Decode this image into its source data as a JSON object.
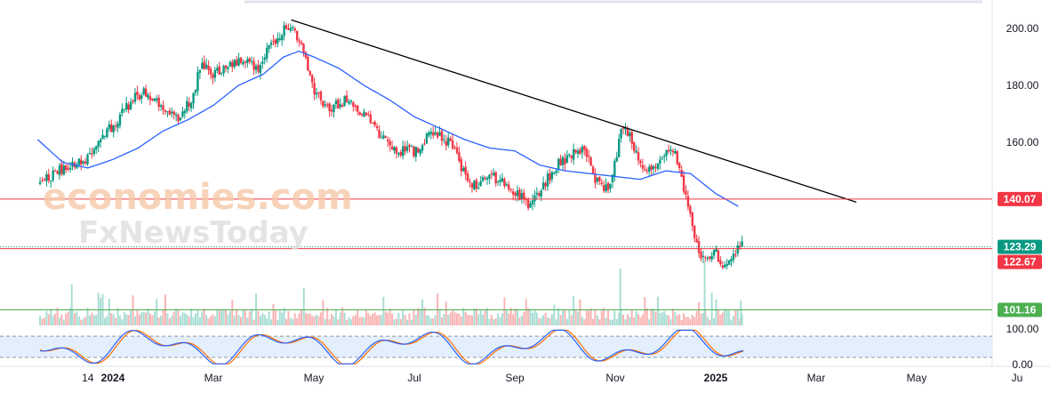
{
  "chart_data": {
    "type": "candlestick",
    "price_axis": {
      "range": [
        96,
        210
      ],
      "ticks": [
        "200.00",
        "180.00",
        "160.00"
      ]
    },
    "stoch_axis": {
      "range": [
        -5,
        108
      ],
      "ticks": [
        "100.00",
        "0.00"
      ],
      "upper_band": 80,
      "lower_band": 20
    },
    "date_labels": [
      {
        "label": "14",
        "month": -0.5,
        "bold": false
      },
      {
        "label": "2024",
        "month": 0,
        "bold": true
      },
      {
        "label": "Mar",
        "month": 2,
        "bold": false
      },
      {
        "label": "May",
        "month": 4,
        "bold": false
      },
      {
        "label": "Jul",
        "month": 6,
        "bold": false
      },
      {
        "label": "Sep",
        "month": 8,
        "bold": false
      },
      {
        "label": "Nov",
        "month": 10,
        "bold": false
      },
      {
        "label": "2025",
        "month": 12,
        "bold": true
      },
      {
        "label": "Mar",
        "month": 14,
        "bold": false
      },
      {
        "label": "May",
        "month": 16,
        "bold": false
      },
      {
        "label": "Ju",
        "month": 18,
        "bold": false
      }
    ],
    "levels": [
      {
        "value": 140.07,
        "label": "140.07",
        "color": "#f23645",
        "style": "solid"
      },
      {
        "value": 123.29,
        "label": "123.29",
        "color": "#089981",
        "style": "dotted"
      },
      {
        "value": 122.67,
        "label": "122.67",
        "color": "#f23645",
        "style": "solid"
      },
      {
        "value": 101.16,
        "label": "101.16",
        "color": "#4caf50",
        "style": "solid"
      }
    ],
    "trendline": {
      "start": {
        "month": 3.55,
        "price": 203
      },
      "end": {
        "month": 14.8,
        "price": 139
      }
    },
    "price_path": [
      [
        -1.45,
        146
      ],
      [
        -1.2,
        149
      ],
      [
        -0.9,
        151
      ],
      [
        -0.6,
        153
      ],
      [
        -0.3,
        160
      ],
      [
        0,
        166
      ],
      [
        0.3,
        173
      ],
      [
        0.6,
        178
      ],
      [
        1.0,
        172
      ],
      [
        1.3,
        168
      ],
      [
        1.6,
        176
      ],
      [
        1.75,
        188
      ],
      [
        2.0,
        184
      ],
      [
        2.3,
        186
      ],
      [
        2.6,
        190
      ],
      [
        2.9,
        185
      ],
      [
        3.1,
        193
      ],
      [
        3.35,
        199
      ],
      [
        3.55,
        202
      ],
      [
        3.75,
        193
      ],
      [
        3.85,
        190
      ],
      [
        4.0,
        177
      ],
      [
        4.3,
        172
      ],
      [
        4.7,
        175
      ],
      [
        5.0,
        170
      ],
      [
        5.3,
        163
      ],
      [
        5.6,
        157
      ],
      [
        5.9,
        158
      ],
      [
        6.1,
        156
      ],
      [
        6.3,
        165
      ],
      [
        6.55,
        162
      ],
      [
        6.8,
        158
      ],
      [
        6.95,
        150
      ],
      [
        7.2,
        145
      ],
      [
        7.5,
        148
      ],
      [
        7.8,
        146
      ],
      [
        8.0,
        143
      ],
      [
        8.3,
        138
      ],
      [
        8.6,
        146
      ],
      [
        8.9,
        153
      ],
      [
        9.2,
        156
      ],
      [
        9.4,
        158
      ],
      [
        9.6,
        146
      ],
      [
        9.9,
        144
      ],
      [
        10.15,
        166
      ],
      [
        10.3,
        162
      ],
      [
        10.5,
        152
      ],
      [
        10.8,
        150
      ],
      [
        11.0,
        155
      ],
      [
        11.15,
        158
      ],
      [
        11.3,
        148
      ],
      [
        11.5,
        135
      ],
      [
        11.65,
        122
      ],
      [
        11.8,
        119
      ],
      [
        12.0,
        121
      ],
      [
        12.15,
        117
      ],
      [
        12.3,
        120
      ],
      [
        12.45,
        122
      ],
      [
        12.55,
        124
      ]
    ],
    "ma_path": [
      [
        -1.5,
        161
      ],
      [
        -1.0,
        153
      ],
      [
        -0.5,
        151
      ],
      [
        0,
        154
      ],
      [
        0.5,
        158
      ],
      [
        1.0,
        164
      ],
      [
        1.5,
        168
      ],
      [
        2.0,
        173
      ],
      [
        2.5,
        180
      ],
      [
        3.0,
        184
      ],
      [
        3.4,
        190
      ],
      [
        3.7,
        192
      ],
      [
        4.0,
        190
      ],
      [
        4.5,
        186
      ],
      [
        5.0,
        180
      ],
      [
        5.5,
        175
      ],
      [
        6.0,
        169
      ],
      [
        6.5,
        165
      ],
      [
        7.0,
        161
      ],
      [
        7.5,
        158
      ],
      [
        8.0,
        157
      ],
      [
        8.5,
        152
      ],
      [
        9.0,
        150
      ],
      [
        9.5,
        149
      ],
      [
        10.0,
        148
      ],
      [
        10.5,
        147
      ],
      [
        11.0,
        150
      ],
      [
        11.5,
        149
      ],
      [
        12.0,
        142
      ],
      [
        12.5,
        137
      ]
    ],
    "colors": {
      "up": "#089981",
      "down": "#f23645",
      "ma": "#2962ff",
      "trendline": "#000000",
      "stoch_k": "#2962ff",
      "stoch_d": "#ff6d00",
      "stoch_band": "#e3effd",
      "volume_up": "#a8ddd4",
      "volume_down": "#f9b4b4"
    }
  },
  "watermark": {
    "brand": "economies.com",
    "sub": "FxNewsToday"
  }
}
